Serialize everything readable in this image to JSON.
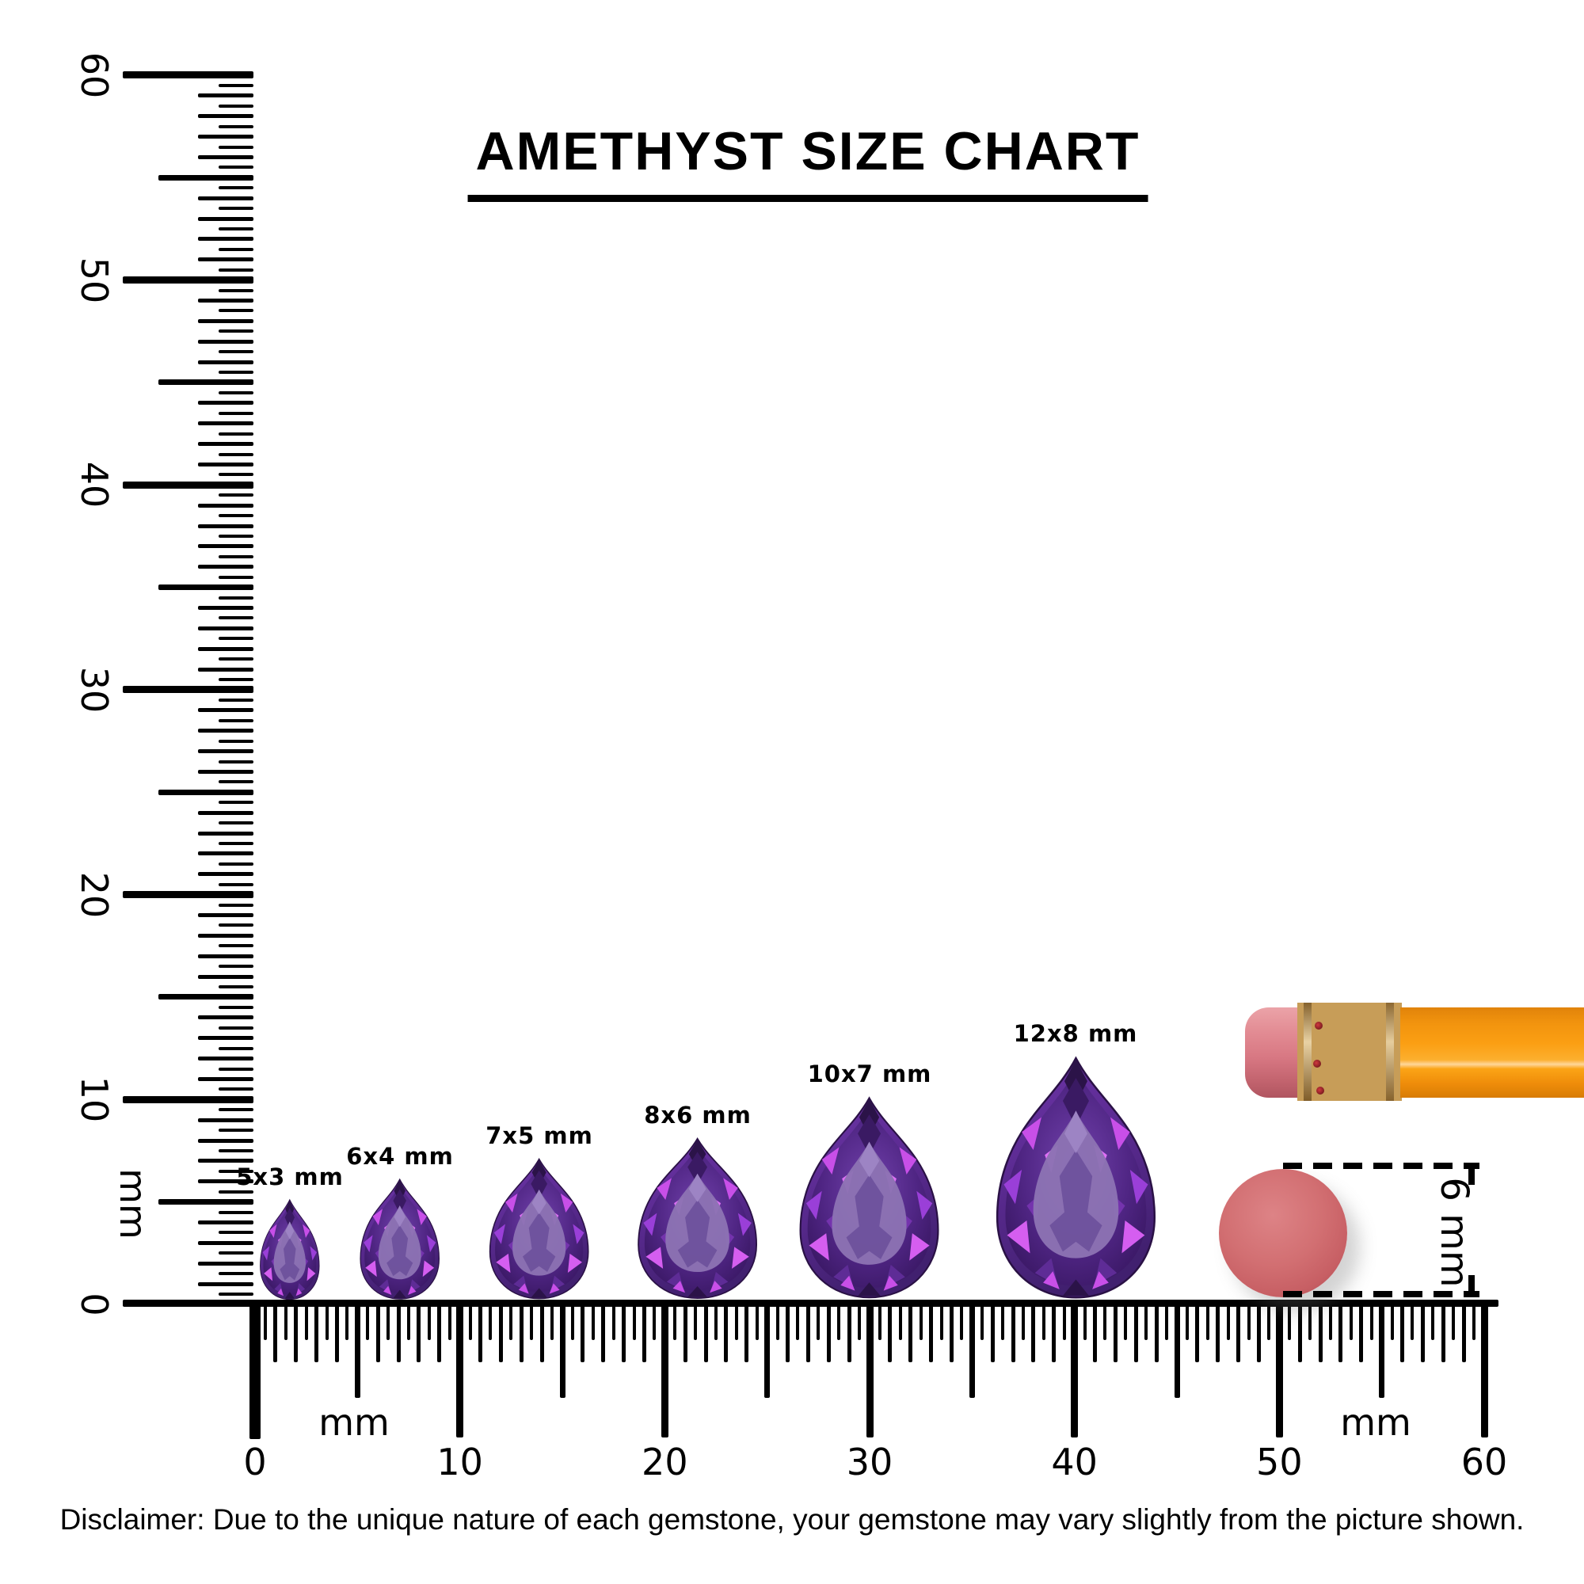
{
  "header": {
    "title": "AMETHYST SIZE CHART"
  },
  "rulers": {
    "vertical": {
      "unit": "mm",
      "tick_labels": [
        "0",
        "10",
        "20",
        "30",
        "40",
        "50",
        "60"
      ],
      "range_mm": [
        0,
        60
      ],
      "tick_step_mm": 0.5
    },
    "horizontal": {
      "unit_left": "mm",
      "unit_right": "mm",
      "tick_labels": [
        "0",
        "10",
        "20",
        "30",
        "40",
        "50",
        "60"
      ],
      "range_mm": [
        0,
        60
      ],
      "tick_step_mm": 0.5
    }
  },
  "gems": [
    {
      "label": "5x3 mm",
      "width_mm": 3,
      "height_mm": 5
    },
    {
      "label": "6x4 mm",
      "width_mm": 4,
      "height_mm": 6
    },
    {
      "label": "7x5 mm",
      "width_mm": 5,
      "height_mm": 7
    },
    {
      "label": "8x6 mm",
      "width_mm": 6,
      "height_mm": 8
    },
    {
      "label": "10x7 mm",
      "width_mm": 7,
      "height_mm": 10
    },
    {
      "label": "12x8 mm",
      "width_mm": 8,
      "height_mm": 12
    }
  ],
  "measure": {
    "label": "6 mm"
  },
  "colors": {
    "amethyst_deep": "#41206f",
    "amethyst_mid": "#5a2a90",
    "amethyst_flash": "#c84fe8",
    "amethyst_table": "#8d73b3",
    "pencil_orange": "#fb9f13",
    "ferrule_gold": "#e4bd74",
    "eraser_pink": "#d26f72",
    "ink": "#000000"
  },
  "disclaimer": {
    "text": "Disclaimer: Due to the unique nature of each gemstone, your gemstone may vary slightly from the picture shown."
  }
}
